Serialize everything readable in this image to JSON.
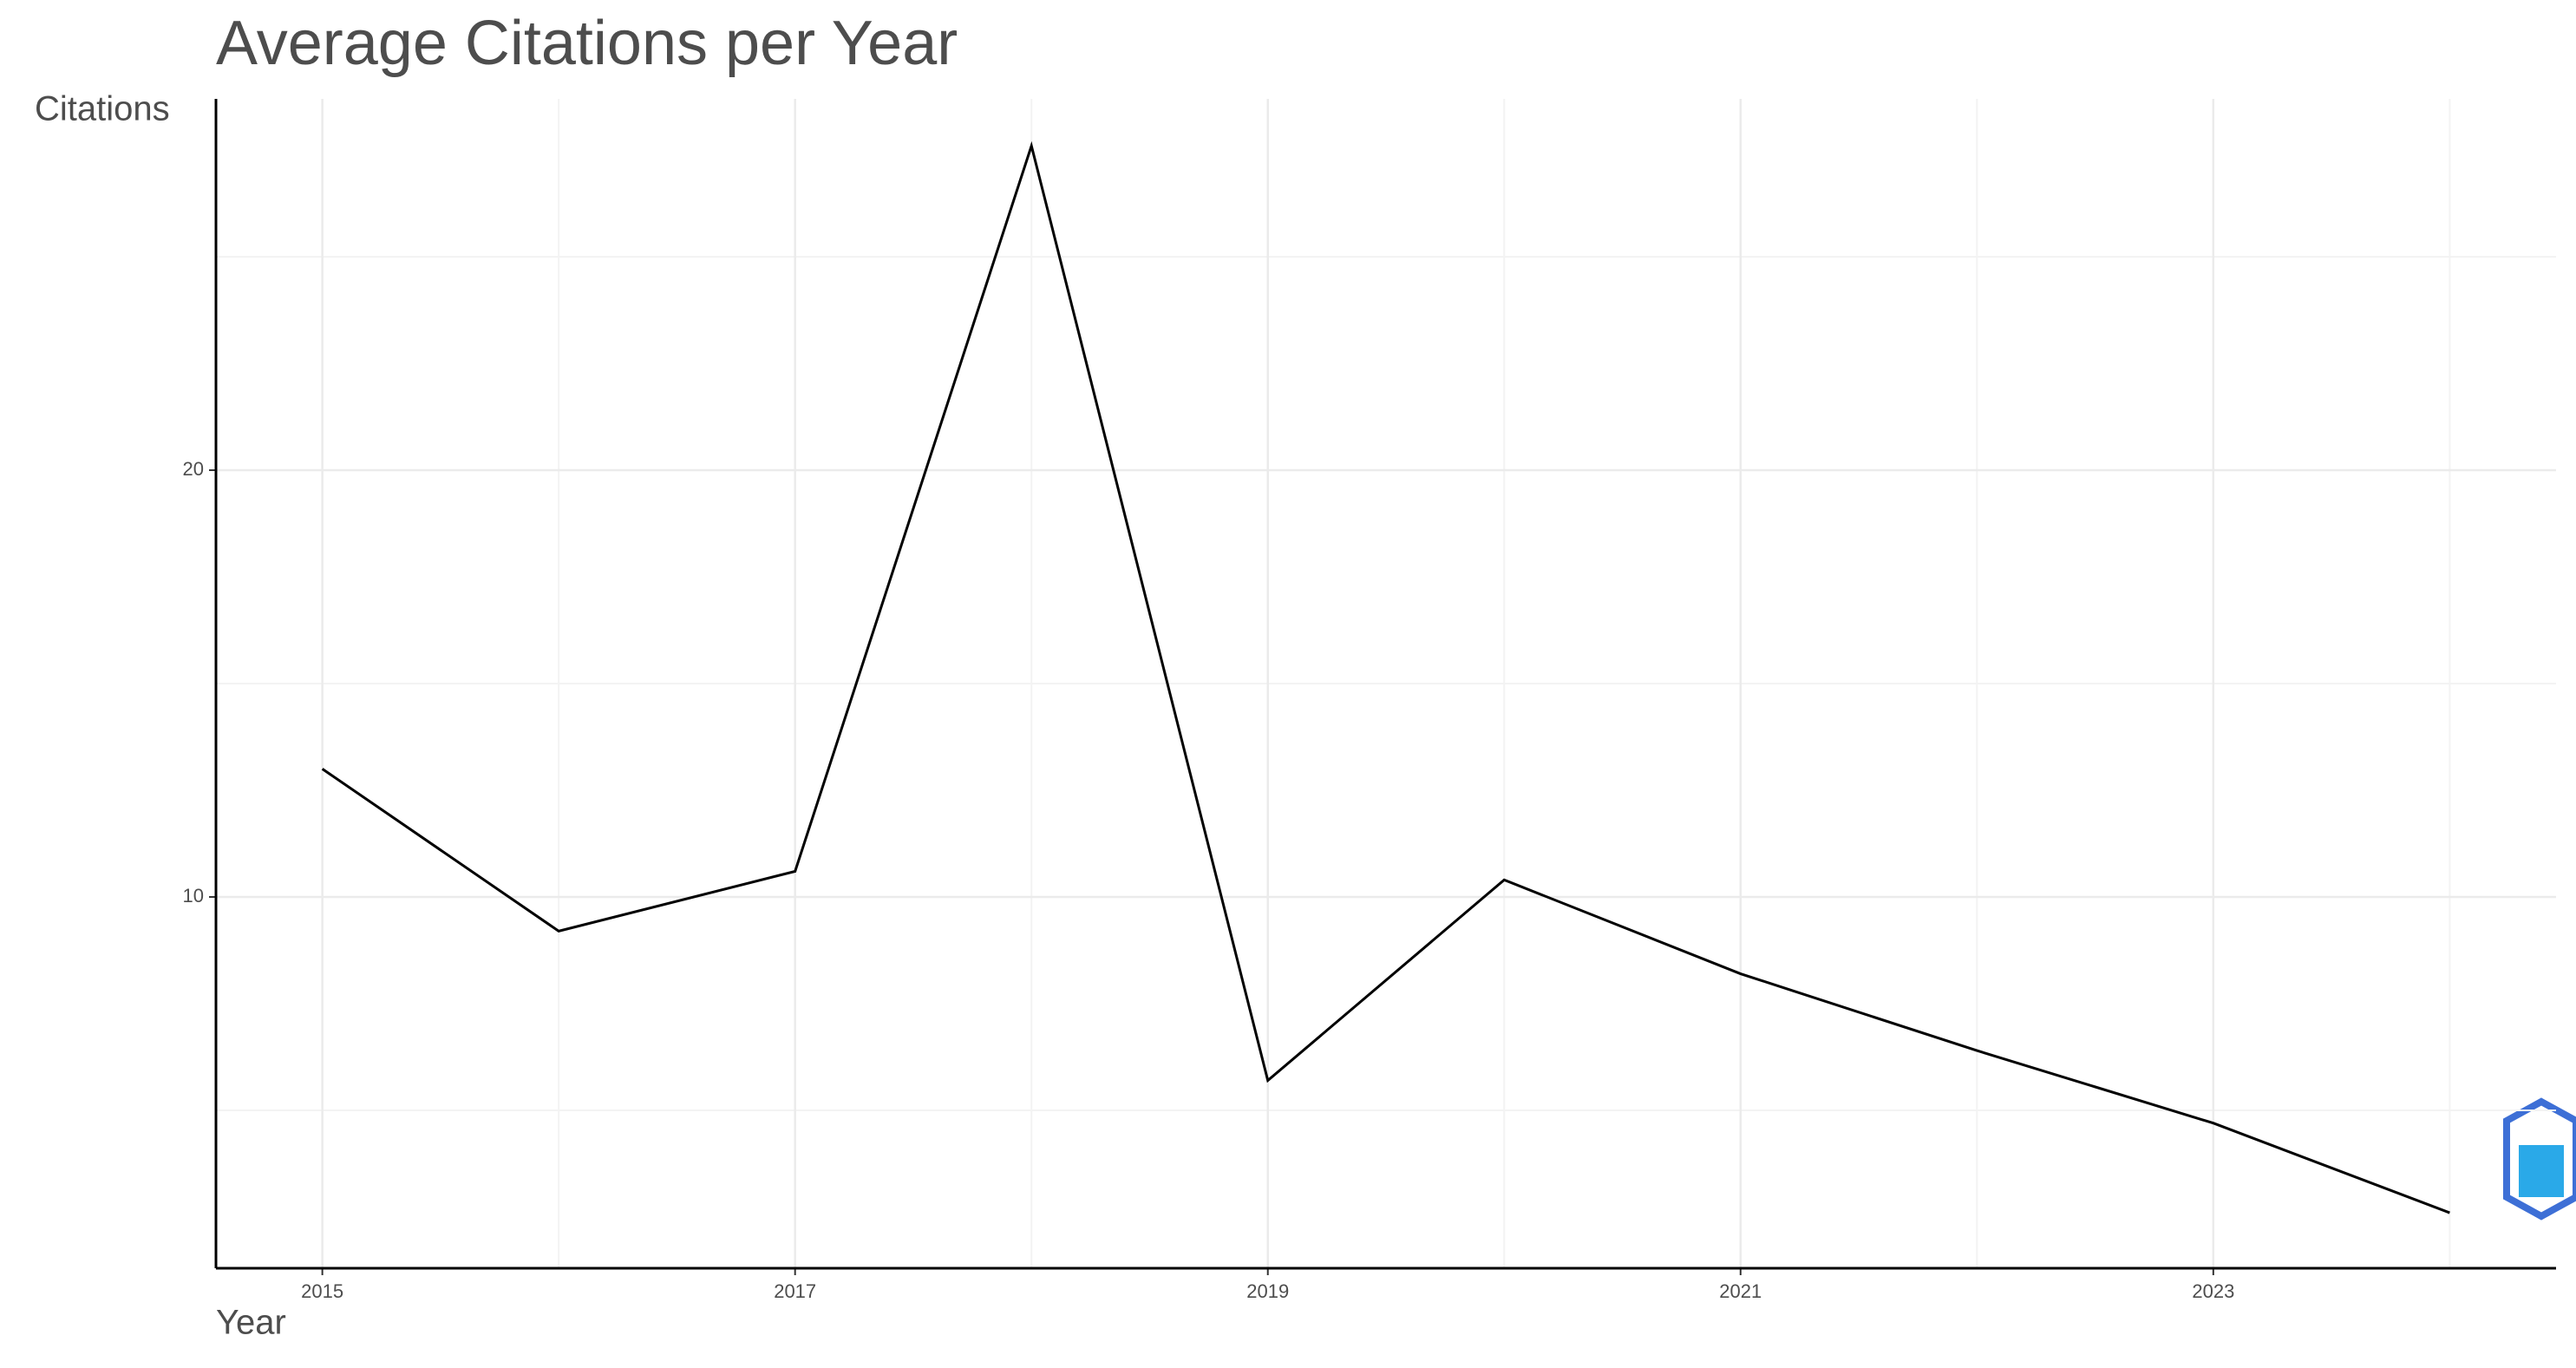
{
  "chart_data": {
    "type": "line",
    "title": "Average Citations per Year",
    "x_label": "Year",
    "y_label": "Citations",
    "x": [
      2015,
      2016,
      2017,
      2018,
      2019,
      2020,
      2021,
      2022,
      2023,
      2024
    ],
    "series": [
      {
        "color": "#000000",
        "values": [
          13.0,
          9.2,
          10.6,
          27.6,
          5.7,
          10.4,
          8.2,
          6.4,
          4.7,
          2.6
        ]
      }
    ],
    "xlim": [
      2014.55,
      2024.45
    ],
    "xticks": [
      2015,
      2017,
      2019,
      2021,
      2023
    ],
    "x_minor_grid": [
      2016,
      2018,
      2020,
      2022,
      2024
    ],
    "ylim": [
      1.3,
      28.7
    ],
    "yticks": [
      10,
      20
    ],
    "y_minor_grid": [
      5,
      15,
      25
    ],
    "grid": true
  }
}
